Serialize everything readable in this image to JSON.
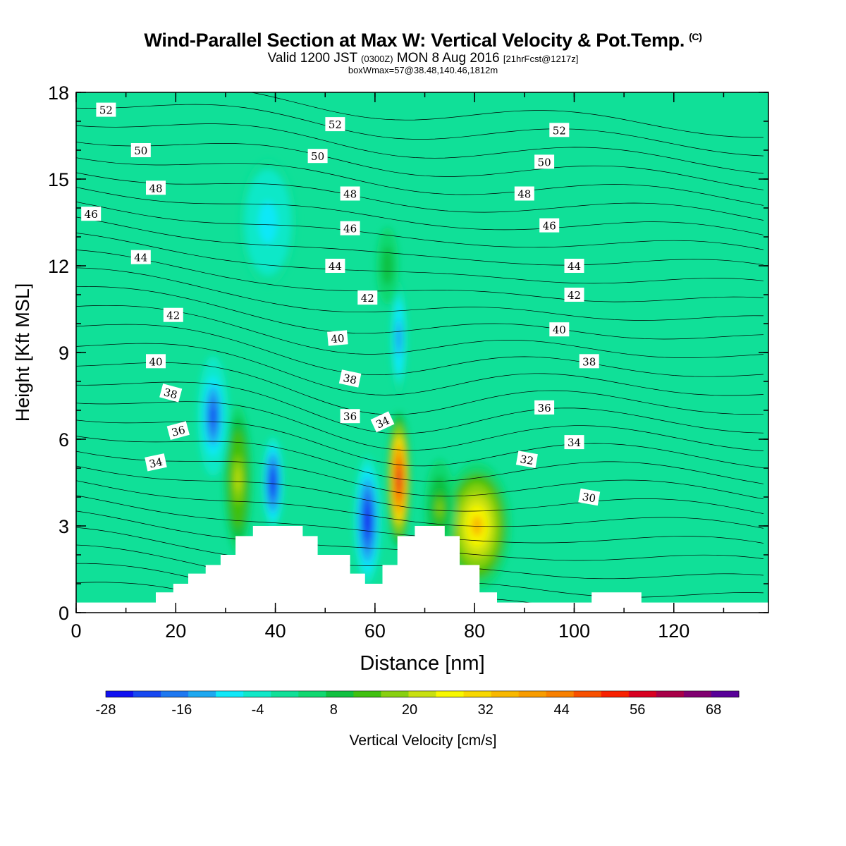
{
  "header": {
    "title": "Wind-Parallel Section at Max W: Vertical Velocity & Pot.Temp.",
    "copyright": "(C)",
    "valid_prefix": "Valid 1200 JST",
    "valid_utc": "(0300Z)",
    "valid_date": "MON 8 Aug 2016",
    "forecast": "[21hrFcst@1217z]",
    "box_info": "boxWmax=57@38.48,140.46,1812m"
  },
  "chart_data": {
    "type": "heatmap",
    "xlabel": "Distance [nm]",
    "ylabel": "Height [Kft MSL]",
    "xlim": [
      0,
      139
    ],
    "ylim": [
      0,
      18
    ],
    "x_ticks": [
      "0",
      "20",
      "40",
      "60",
      "80",
      "100",
      "120"
    ],
    "y_ticks": [
      "0",
      "3",
      "6",
      "9",
      "12",
      "15",
      "18"
    ],
    "colorbar": {
      "label": "Vertical Velocity [cm/s]",
      "tick_labels": [
        "-28",
        "-16",
        "-4",
        "8",
        "20",
        "32",
        "44",
        "56",
        "68"
      ],
      "range": [
        -28,
        72
      ],
      "colors": [
        "#1010f0",
        "#1848f0",
        "#1e78f0",
        "#1ea8f0",
        "#10e8f8",
        "#10e8c8",
        "#10e098",
        "#10d870",
        "#10c040",
        "#40c010",
        "#88d010",
        "#c8e010",
        "#f8f800",
        "#f8d800",
        "#f8b800",
        "#f89c00",
        "#f88000",
        "#f85000",
        "#f82000",
        "#d80020",
        "#a80048",
        "#800070",
        "#580098"
      ]
    },
    "terrain": [
      [
        0,
        0.35
      ],
      [
        16,
        0.35
      ],
      [
        16,
        0.7
      ],
      [
        19.5,
        0.7
      ],
      [
        19.5,
        1.0
      ],
      [
        22.5,
        1.0
      ],
      [
        22.5,
        1.35
      ],
      [
        26,
        1.35
      ],
      [
        26,
        1.65
      ],
      [
        29,
        1.65
      ],
      [
        29,
        2.0
      ],
      [
        32,
        2.0
      ],
      [
        32,
        2.65
      ],
      [
        35.5,
        2.65
      ],
      [
        35.5,
        3.0
      ],
      [
        45.5,
        3.0
      ],
      [
        45.5,
        2.65
      ],
      [
        48.5,
        2.65
      ],
      [
        48.5,
        2.0
      ],
      [
        55,
        2.0
      ],
      [
        55,
        1.35
      ],
      [
        58,
        1.35
      ],
      [
        58,
        1.0
      ],
      [
        61.5,
        1.0
      ],
      [
        61.5,
        1.65
      ],
      [
        64.5,
        1.65
      ],
      [
        64.5,
        2.65
      ],
      [
        68,
        2.65
      ],
      [
        68,
        3.0
      ],
      [
        74,
        3.0
      ],
      [
        74,
        2.65
      ],
      [
        77,
        2.65
      ],
      [
        77,
        1.65
      ],
      [
        81,
        1.65
      ],
      [
        81,
        0.7
      ],
      [
        84.5,
        0.7
      ],
      [
        84.5,
        0.35
      ],
      [
        103.5,
        0.35
      ],
      [
        103.5,
        0.7
      ],
      [
        113.5,
        0.7
      ],
      [
        113.5,
        0.35
      ],
      [
        139,
        0.35
      ]
    ],
    "velocity_features": [
      {
        "x": 32.5,
        "y": 4.6,
        "value": 22
      },
      {
        "x": 39.5,
        "y": 4.5,
        "value": -24
      },
      {
        "x": 27.5,
        "y": 6.8,
        "value": -20
      },
      {
        "x": 58.5,
        "y": 3.2,
        "value": -26
      },
      {
        "x": 64.8,
        "y": 4.6,
        "value": 57
      },
      {
        "x": 80.5,
        "y": 3.0,
        "value": 34
      },
      {
        "x": 64.8,
        "y": 9.5,
        "value": -16
      },
      {
        "x": 62.5,
        "y": 12.0,
        "value": 10
      },
      {
        "x": 38.5,
        "y": 13.5,
        "value": -8
      },
      {
        "x": 73.0,
        "y": 3.6,
        "value": 16
      }
    ],
    "contour_labels": [
      "52",
      "50",
      "48",
      "46",
      "44",
      "42",
      "40",
      "38",
      "36",
      "34",
      "52",
      "50",
      "48",
      "46",
      "44",
      "42",
      "40",
      "38",
      "36",
      "34",
      "52",
      "50",
      "48",
      "46",
      "44",
      "42",
      "40",
      "38",
      "36",
      "34",
      "32",
      "30"
    ]
  }
}
